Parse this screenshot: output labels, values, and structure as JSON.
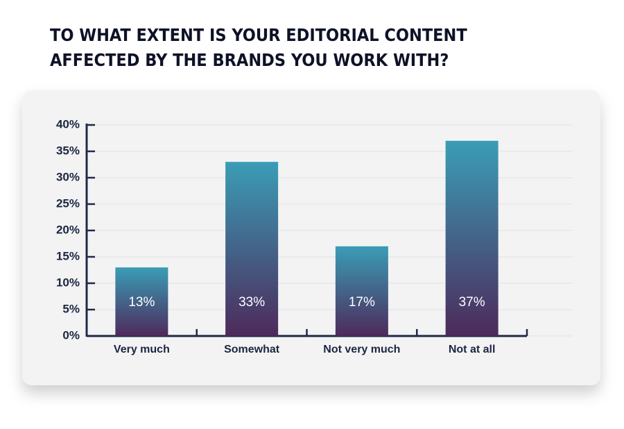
{
  "chart_data": {
    "type": "bar",
    "title": [
      "TO WHAT EXTENT IS YOUR EDITORIAL CONTENT",
      "AFFECTED BY THE BRANDS YOU WORK WITH?"
    ],
    "categories": [
      "Very much",
      "Somewhat",
      "Not very much",
      "Not at all"
    ],
    "values": [
      13,
      33,
      17,
      37
    ],
    "value_labels": [
      "13%",
      "33%",
      "17%",
      "37%"
    ],
    "gradient": [
      "#3a9db6",
      "#4d2a5b"
    ],
    "ylim": [
      0,
      40
    ],
    "yticks": [
      {
        "value": 0,
        "label": "0%"
      },
      {
        "value": 5,
        "label": "5%"
      },
      {
        "value": 10,
        "label": "10%"
      },
      {
        "value": 15,
        "label": "15%"
      },
      {
        "value": 20,
        "label": "20%"
      },
      {
        "value": 25,
        "label": "25%"
      },
      {
        "value": 30,
        "label": "30%"
      },
      {
        "value": 35,
        "label": "35%"
      },
      {
        "value": 40,
        "label": "40%"
      }
    ],
    "grid": true
  }
}
